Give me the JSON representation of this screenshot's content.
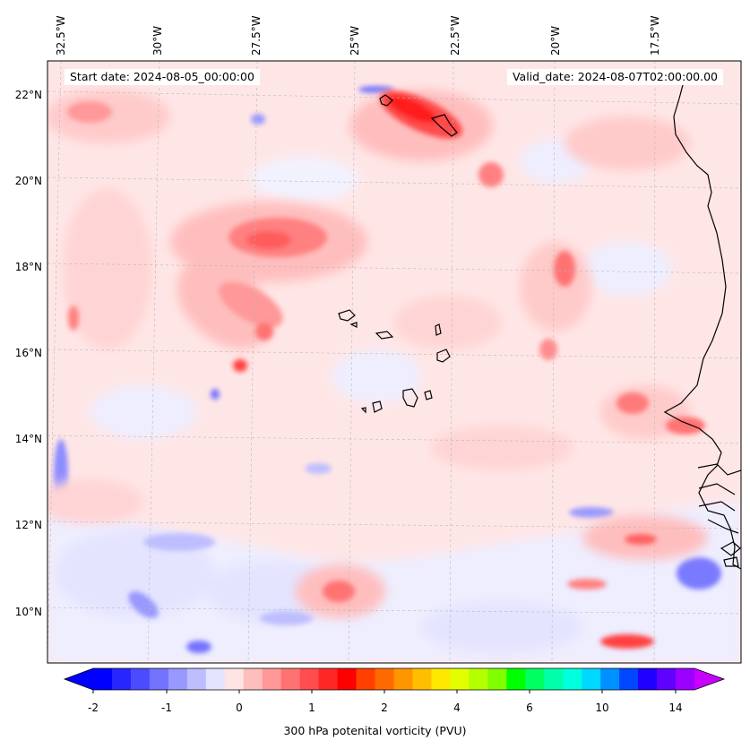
{
  "header": {
    "start_date": "Start date: 2024-08-05_00:00:00",
    "valid_date": "Valid_date: 2024-08-07T02:00:00.00"
  },
  "axes": {
    "lon_labels": [
      "32.5°W",
      "30°W",
      "27.5°W",
      "25°W",
      "22.5°W",
      "20°W",
      "17.5°W"
    ],
    "lat_labels": [
      "22°N",
      "20°N",
      "18°N",
      "16°N",
      "14°N",
      "12°N",
      "10°N"
    ]
  },
  "map": {
    "variable": "300 hPa potential vorticity",
    "gridlines": true,
    "features": [
      "Cape Verde islands",
      "West African coastline"
    ]
  },
  "colorbar": {
    "tick_labels": [
      "-2",
      "-1",
      "0",
      "1",
      "2",
      "4",
      "6",
      "10",
      "14"
    ],
    "title": "300 hPa potenital vorticity (PVU)",
    "colors": [
      "#0000ff",
      "#2626ff",
      "#4c4cff",
      "#7272ff",
      "#9898ff",
      "#bebeff",
      "#e4e4ff",
      "#ffe4e4",
      "#ffbebe",
      "#ff9898",
      "#ff7272",
      "#ff4c4c",
      "#ff2626",
      "#ff0000",
      "#ff4000",
      "#ff6a00",
      "#ff9600",
      "#ffbf00",
      "#ffe800",
      "#e2ff00",
      "#b4ff00",
      "#80ff00",
      "#00ff00",
      "#00ff60",
      "#00ffa8",
      "#00ffdc",
      "#00d8ff",
      "#0090ff",
      "#0048ff",
      "#2000ff",
      "#6000ff",
      "#9c00ff"
    ],
    "under_color": "#0000ff",
    "over_color": "#c800ff"
  }
}
